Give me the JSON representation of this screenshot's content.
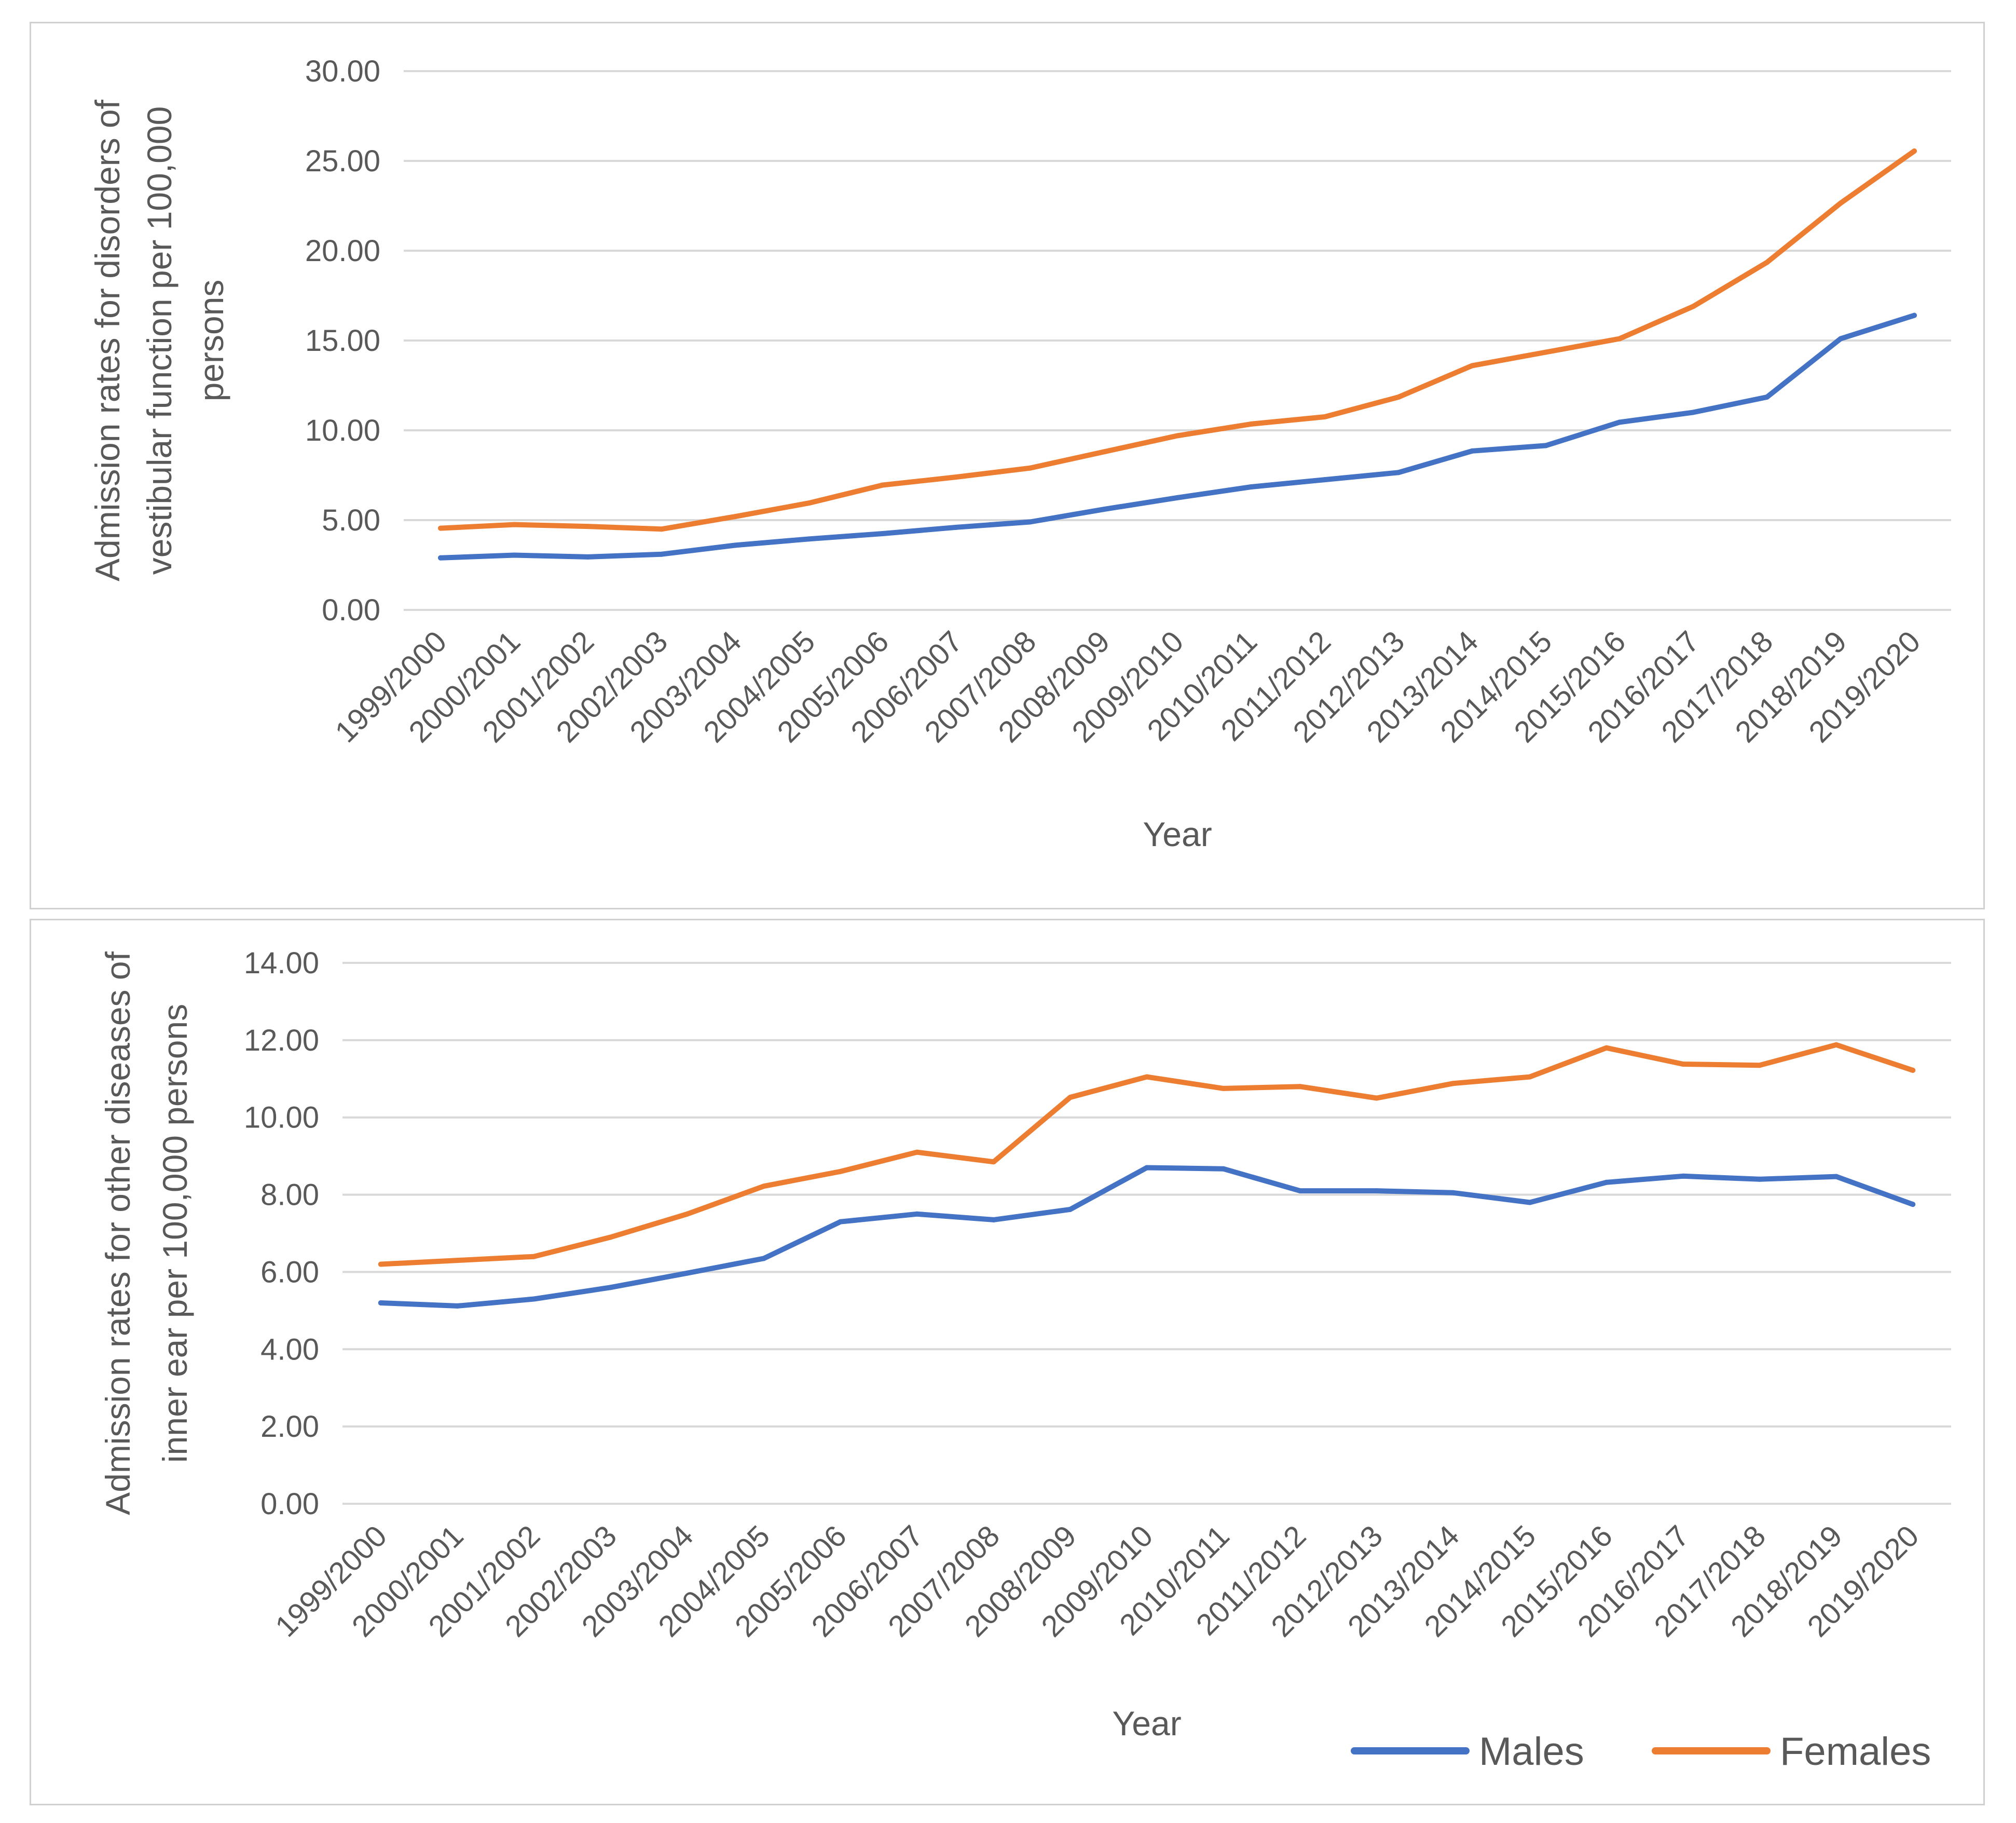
{
  "colors": {
    "males": "#4472C4",
    "females": "#ED7D31",
    "grid": "#d9d9d9",
    "text": "#595959"
  },
  "legend": {
    "items": [
      {
        "label": "Males",
        "color": "#4472C4"
      },
      {
        "label": "Females",
        "color": "#ED7D31"
      }
    ]
  },
  "chart_data": [
    {
      "type": "line",
      "title": "",
      "xlabel": "Year",
      "ylabel": "Admission rates  for disorders of vestibular function per 100,000 persons",
      "ylabel_lines": [
        "Admission rates  for disorders of",
        "vestibular function per 100,000",
        "persons"
      ],
      "ylim": [
        0,
        30
      ],
      "yticks": [
        "0.00",
        "5.00",
        "10.00",
        "15.00",
        "20.00",
        "25.00",
        "30.00"
      ],
      "categories": [
        "1999/2000",
        "2000/2001",
        "2001/2002",
        "2002/2003",
        "2003/2004",
        "2004/2005",
        "2005/2006",
        "2006/2007",
        "2007/2008",
        "2008/2009",
        "2009/2010",
        "2010/2011",
        "2011/2012",
        "2012/2013",
        "2013/2014",
        "2014/2015",
        "2015/2016",
        "2016/2017",
        "2017/2018",
        "2018/2019",
        "2019/2020"
      ],
      "series": [
        {
          "name": "Males",
          "values": [
            2.9,
            3.05,
            2.95,
            3.1,
            3.6,
            3.95,
            4.25,
            4.6,
            4.9,
            5.6,
            6.25,
            6.85,
            7.25,
            7.65,
            8.85,
            9.15,
            10.45,
            11.0,
            11.85,
            15.1,
            16.4
          ]
        },
        {
          "name": "Females",
          "values": [
            4.55,
            4.75,
            4.65,
            4.5,
            5.2,
            5.95,
            6.95,
            7.4,
            7.9,
            8.8,
            9.7,
            10.35,
            10.75,
            11.85,
            13.6,
            14.35,
            15.1,
            16.9,
            19.35,
            22.65,
            25.55
          ]
        }
      ]
    },
    {
      "type": "line",
      "title": "",
      "xlabel": "Year",
      "ylabel": "Admission rates for other diseases of inner ear per 100,000 persons",
      "ylabel_lines": [
        "Admission rates for other diseases of",
        "inner ear per 100,000 persons"
      ],
      "ylim": [
        0,
        14
      ],
      "yticks": [
        "0.00",
        "2.00",
        "4.00",
        "6.00",
        "8.00",
        "10.00",
        "12.00",
        "14.00"
      ],
      "categories": [
        "1999/2000",
        "2000/2001",
        "2001/2002",
        "2002/2003",
        "2003/2004",
        "2004/2005",
        "2005/2006",
        "2006/2007",
        "2007/2008",
        "2008/2009",
        "2009/2010",
        "2010/2011",
        "2011/2012",
        "2012/2013",
        "2013/2014",
        "2014/2015",
        "2015/2016",
        "2016/2017",
        "2017/2018",
        "2018/2019",
        "2019/2020"
      ],
      "series": [
        {
          "name": "Males",
          "values": [
            5.2,
            5.12,
            5.3,
            5.6,
            5.97,
            6.35,
            7.3,
            7.5,
            7.35,
            7.62,
            8.7,
            8.67,
            8.1,
            8.1,
            8.05,
            7.8,
            8.32,
            8.48,
            8.4,
            8.47,
            7.75
          ]
        },
        {
          "name": "Females",
          "values": [
            6.2,
            6.3,
            6.4,
            6.9,
            7.5,
            8.22,
            8.6,
            9.1,
            8.85,
            10.52,
            11.05,
            10.75,
            10.8,
            10.5,
            10.88,
            11.05,
            11.8,
            11.38,
            11.35,
            11.88,
            11.22
          ]
        }
      ]
    }
  ]
}
